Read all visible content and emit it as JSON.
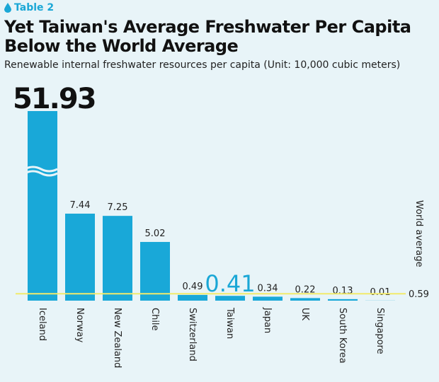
{
  "header": {
    "tag_label": "Table 2",
    "tag_icon": "water-drop-icon",
    "title": "Yet Taiwan's Average Freshwater Per Capita Below the World Average",
    "subtitle": "Renewable internal freshwater resources per capita (Unit: 10,000 cubic meters)"
  },
  "colors": {
    "bar": "#19a8d8",
    "highlight": "#1aa7d6",
    "reference": "#f2ea6a",
    "background": "#e8f4f8"
  },
  "chart_data": {
    "type": "bar",
    "title": "Yet Taiwan's Average Freshwater Per Capita Below the World Average",
    "subtitle": "Renewable internal freshwater resources per capita (Unit: 10,000 cubic meters)",
    "categories": [
      "Iceland",
      "Norway",
      "New Zealand",
      "Chile",
      "Switzerland",
      "Taiwan",
      "Japan",
      "UK",
      "South Korea",
      "Singapore"
    ],
    "values": [
      51.93,
      7.44,
      7.25,
      5.02,
      0.49,
      0.41,
      0.34,
      0.22,
      0.13,
      0.01
    ],
    "value_labels": [
      "51.93",
      "7.44",
      "7.25",
      "5.02",
      "0.49",
      "0.41",
      "0.34",
      "0.22",
      "0.13",
      "0.01"
    ],
    "highlight_category": "Taiwan",
    "broken_axis_category": "Iceland",
    "reference_line": {
      "label": "World average",
      "value": 0.59,
      "value_label": "0.59"
    },
    "ylim": [
      0,
      8
    ],
    "grid": false,
    "legend": "none"
  }
}
